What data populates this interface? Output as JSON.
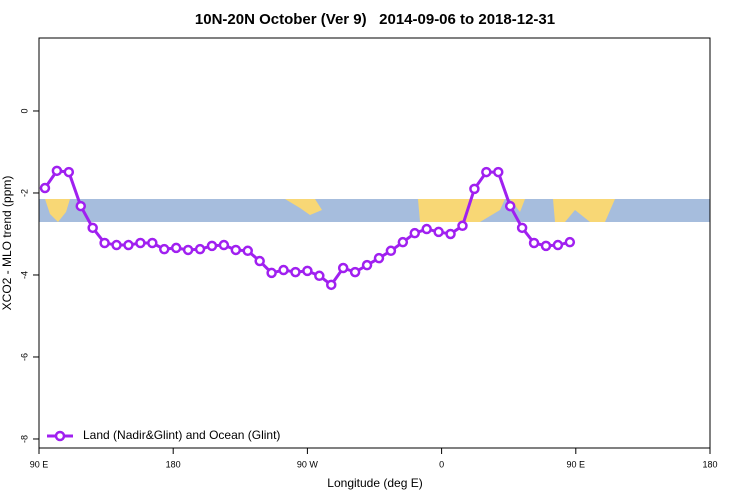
{
  "chart_data": {
    "type": "line",
    "title": "10N-20N October (Ver 9)   2014-09-06 to 2018-12-31",
    "xlabel": "Longitude (deg E)",
    "ylabel": "XCO2 - MLO trend (ppm)",
    "x": [
      94,
      102,
      110,
      118,
      126,
      134,
      142,
      150,
      158,
      166,
      174,
      182,
      190,
      198,
      206,
      214,
      222,
      230,
      238,
      246,
      254,
      262,
      270,
      278,
      286,
      294,
      302,
      310,
      318,
      326,
      334,
      342,
      350,
      358,
      366,
      374,
      382,
      390,
      398,
      406,
      414,
      422,
      430,
      438,
      446
    ],
    "series": [
      {
        "name": "Land (Nadir&Glint) and Ocean (Glint)",
        "color": "#a020f0",
        "values": [
          -1.88,
          -1.46,
          -1.49,
          -2.32,
          -2.85,
          -3.22,
          -3.27,
          -3.27,
          -3.22,
          -3.22,
          -3.37,
          -3.34,
          -3.39,
          -3.37,
          -3.29,
          -3.27,
          -3.39,
          -3.41,
          -3.66,
          -3.95,
          -3.88,
          -3.93,
          -3.9,
          -4.02,
          -4.24,
          -3.83,
          -3.93,
          -3.76,
          -3.59,
          -3.41,
          -3.2,
          -2.98,
          -2.88,
          -2.95,
          -3.0,
          -2.8,
          -1.9,
          -1.49,
          -1.49,
          -2.32,
          -2.85,
          -3.22,
          -3.29,
          -3.27,
          -3.2
        ]
      }
    ],
    "xlim": [
      90,
      540
    ],
    "xticks": [
      {
        "value": 90,
        "label": "90 E"
      },
      180,
      {
        "value": 270,
        "label": "90 W"
      },
      {
        "value": 360,
        "label": "0"
      },
      {
        "value": 450,
        "label": "90 E"
      },
      {
        "value": 540,
        "label": "180"
      }
    ],
    "ylim": [
      -8.22,
      1.78
    ],
    "yticks": [
      -8,
      -6,
      -4,
      -2,
      0
    ],
    "legend": "bottom-left"
  }
}
